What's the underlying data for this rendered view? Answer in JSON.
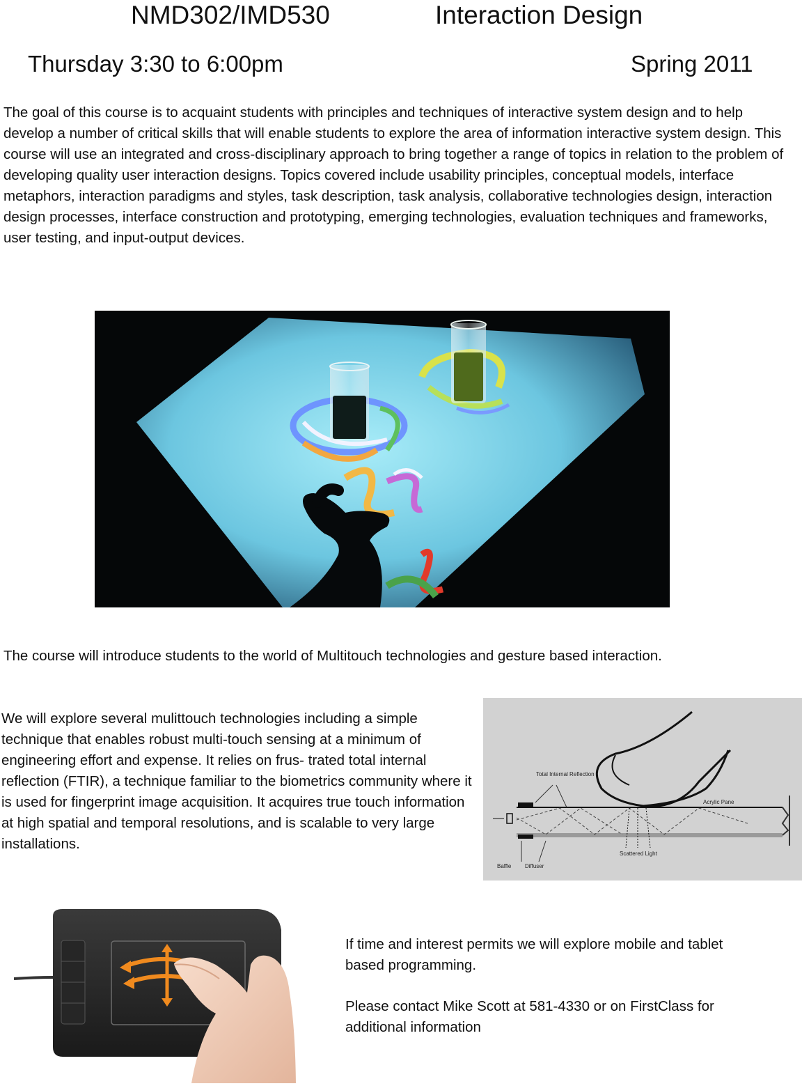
{
  "header": {
    "course_code": "NMD302/IMD530",
    "course_title": "Interaction Design",
    "schedule": "Thursday 3:30 to 6:00pm",
    "term": "Spring 2011"
  },
  "intro": {
    "text": "The goal of this course is to acquaint students with principles and techniques of interactive system design and to help develop a number of critical skills that will enable students to explore the area of information interactive system design. This course will use an integrated and cross-disciplinary approach to bring together a range of topics in relation to the problem of developing quality user interaction designs. Topics covered include usability principles, conceptual models, interface metaphors, interaction paradigms and styles, task description, task analysis, collaborative technologies design, interaction design processes, interface construction and prototyping, emerging technologies, evaluation techniques and frameworks, user testing, and input-output devices."
  },
  "multitouch": {
    "text": "The course will introduce students to the world of Multitouch technologies and gesture based interaction."
  },
  "ftir": {
    "text": "We will explore several mulittouch technologies including a simple technique that enables robust multi-touch sensing at a minimum of engineering effort and expense. It relies on frus- trated total internal reflection (FTIR), a technique familiar to the biometrics community where it is used for fingerprint image acquisition. It acquires true touch information at high spatial and temporal resolutions, and is scalable to very large installations.",
    "diagram_labels": {
      "total_internal_reflection": "Total Internal Reflection",
      "acrylic_pane": "Acrylic Pane",
      "scattered_light": "Scattered Light",
      "baffle": "Baffle",
      "diffuser": "Diffuser"
    }
  },
  "mobile": {
    "text": "If time and interest permits we will explore mobile and tablet based programming."
  },
  "contact": {
    "text": "Please contact Mike Scott at 581-4330 or on FirstClass for additional information"
  },
  "colors": {
    "text": "#111111",
    "surface_glow": "#7ad4ee",
    "diagram_bg": "#d2d2d2",
    "tablet_body": "#2b2b2b",
    "gesture_orange": "#f08a1e"
  }
}
